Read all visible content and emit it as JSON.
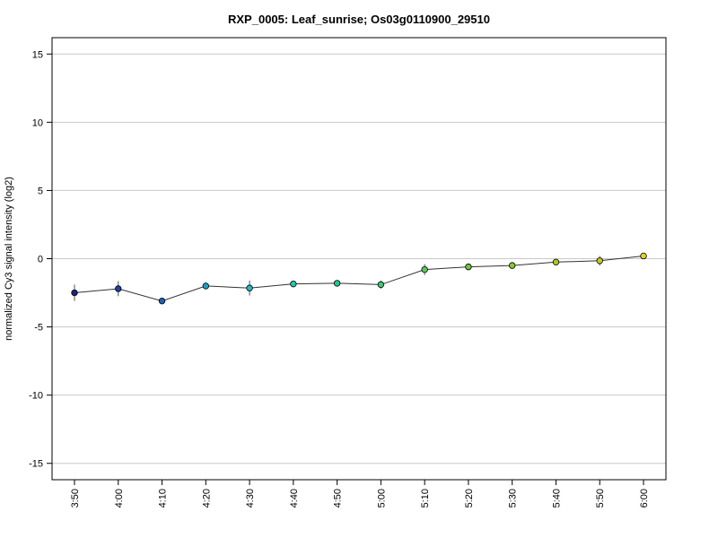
{
  "chart_data": {
    "type": "line",
    "title": "RXP_0005: Leaf_sunrise; Os03g0110900_29510",
    "ylabel": "normalized Cy3 signal intensity (log2)",
    "xlabel": "",
    "categories": [
      "3:50",
      "4:00",
      "4:10",
      "4:20",
      "4:30",
      "4:40",
      "4:50",
      "5:00",
      "5:10",
      "5:20",
      "5:30",
      "5:40",
      "5:50",
      "6:00"
    ],
    "series": [
      {
        "values": [
          -2.5,
          -2.2,
          -3.1,
          -2.0,
          -2.15,
          -1.85,
          -1.8,
          -1.9,
          -0.8,
          -0.6,
          -0.5,
          -0.25,
          -0.15,
          0.2
        ],
        "error": [
          0.6,
          0.55,
          0.1,
          0.25,
          0.55,
          0.1,
          0.1,
          0.3,
          0.4,
          0.15,
          0.2,
          0.1,
          0.35,
          0.1
        ],
        "colors": [
          "#1a237e",
          "#1f3fa0",
          "#1f5fb8",
          "#1f9ec8",
          "#1fb8c8",
          "#1fc8a8",
          "#1fc890",
          "#3dc878",
          "#5ac85a",
          "#6cc840",
          "#88c830",
          "#a8c828",
          "#c8c820",
          "#d8d820"
        ]
      }
    ],
    "ylim": [
      -16.2,
      16.2
    ],
    "yticks": [
      15,
      10,
      5,
      0,
      -5,
      -10,
      -15
    ],
    "grid": "horizontal"
  }
}
